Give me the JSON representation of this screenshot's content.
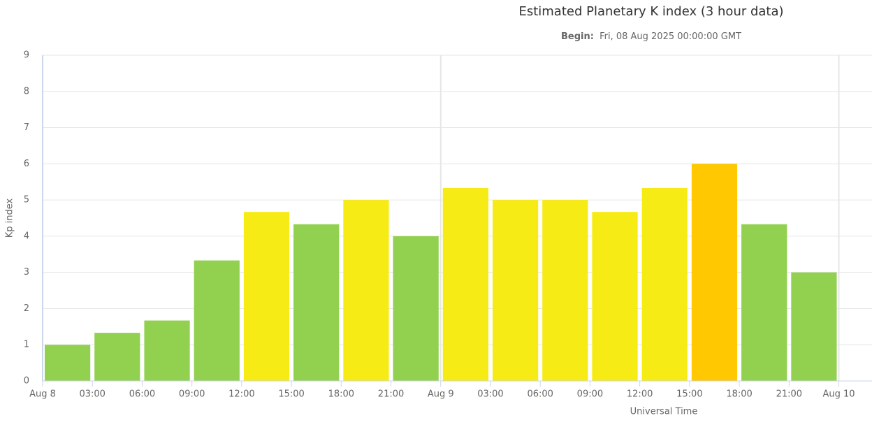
{
  "chart_data": {
    "type": "bar",
    "title": "Estimated Planetary K index (3 hour data)",
    "subtitle_label": "Begin:",
    "subtitle": "Fri, 08 Aug 2025 00:00:00 GMT",
    "x_label": "Universal Time",
    "y_label": "Kp index",
    "x": [
      0,
      3,
      6,
      9,
      12,
      15,
      18,
      21,
      24,
      27,
      30,
      33,
      36,
      39,
      42,
      45
    ],
    "bar_span": 3,
    "values": [
      1,
      1.33,
      1.67,
      3.33,
      4.67,
      4.33,
      5,
      4,
      5.33,
      5,
      5,
      4.67,
      5.33,
      6,
      4.33,
      3
    ],
    "colors": [
      "#92d050",
      "#92d050",
      "#92d050",
      "#92d050",
      "#f6eb14",
      "#92d050",
      "#f6eb14",
      "#92d050",
      "#f6eb14",
      "#f6eb14",
      "#f6eb14",
      "#f6eb14",
      "#f6eb14",
      "#ffc800",
      "#92d050",
      "#92d050"
    ],
    "xlim": [
      0,
      50
    ],
    "xticks": [
      {
        "value": 0,
        "label": "Aug 8"
      },
      {
        "value": 3,
        "label": "03:00"
      },
      {
        "value": 6,
        "label": "06:00"
      },
      {
        "value": 9,
        "label": "09:00"
      },
      {
        "value": 12,
        "label": "12:00"
      },
      {
        "value": 15,
        "label": "15:00"
      },
      {
        "value": 18,
        "label": "18:00"
      },
      {
        "value": 21,
        "label": "21:00"
      },
      {
        "value": 24,
        "label": "Aug 9"
      },
      {
        "value": 27,
        "label": "03:00"
      },
      {
        "value": 30,
        "label": "06:00"
      },
      {
        "value": 33,
        "label": "09:00"
      },
      {
        "value": 36,
        "label": "12:00"
      },
      {
        "value": 39,
        "label": "15:00"
      },
      {
        "value": 42,
        "label": "18:00"
      },
      {
        "value": 45,
        "label": "21:00"
      },
      {
        "value": 48,
        "label": "Aug 10"
      }
    ],
    "xgrid": [
      24,
      48
    ],
    "ylim": [
      0,
      9
    ],
    "yticks": [
      0,
      1,
      2,
      3,
      4,
      5,
      6,
      7,
      8,
      9
    ],
    "grid": true
  }
}
